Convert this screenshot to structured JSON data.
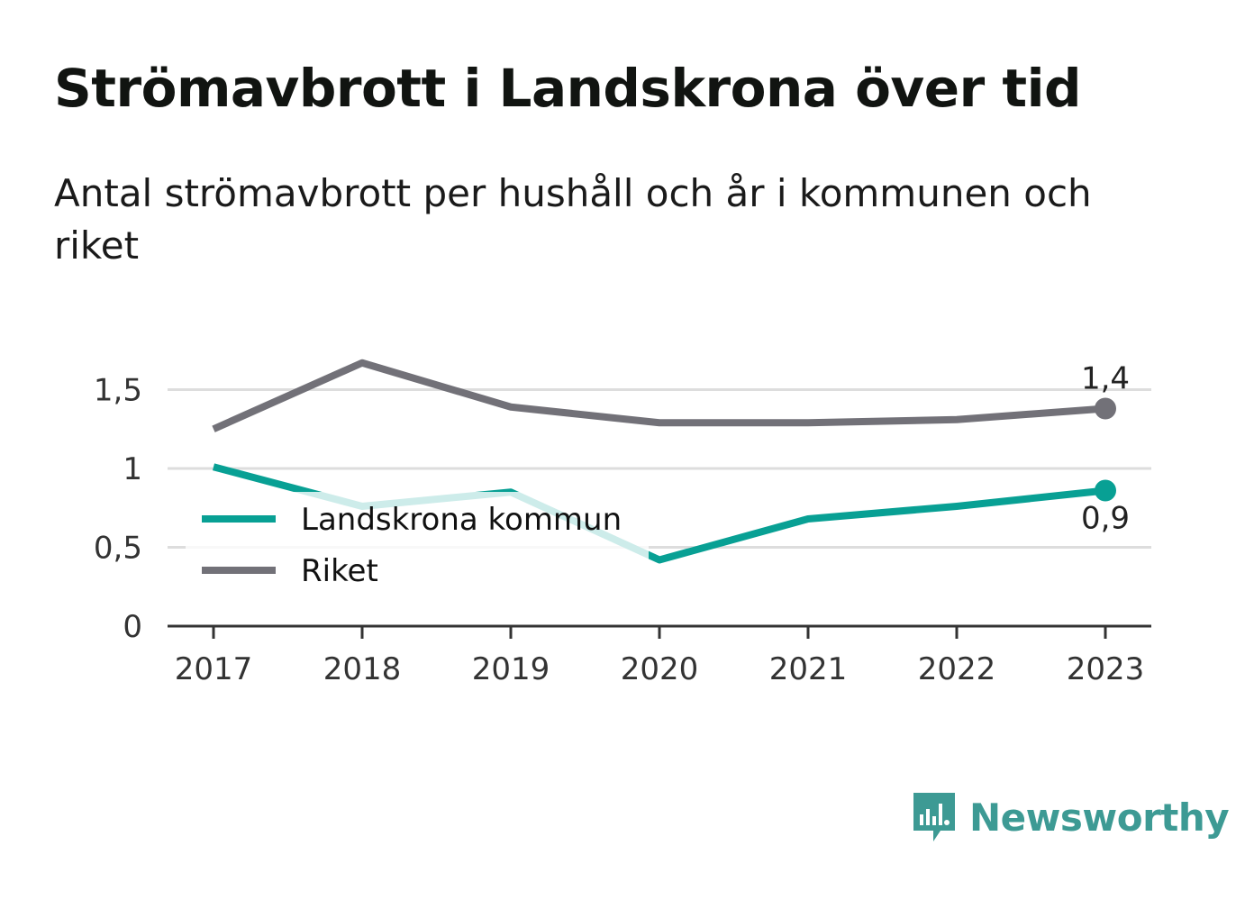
{
  "title": "Strömavbrott i Landskrona över tid",
  "subtitle": "Antal strömavbrott per hushåll och år i kommunen och riket",
  "brand": {
    "name": "Newsworthy",
    "icon": "newsworthy-logo-icon",
    "color": "#3d9a94"
  },
  "chart_data": {
    "type": "line",
    "title": "Strömavbrott i Landskrona över tid",
    "subtitle": "Antal strömavbrott per hushåll och år i kommunen och riket",
    "x": [
      "2017",
      "2018",
      "2019",
      "2020",
      "2021",
      "2022",
      "2023"
    ],
    "ylim": [
      0,
      1.75
    ],
    "yticks": [
      {
        "value": 0,
        "label": "0"
      },
      {
        "value": 0.5,
        "label": "0,5"
      },
      {
        "value": 1,
        "label": "1"
      },
      {
        "value": 1.5,
        "label": "1,5"
      }
    ],
    "grid": true,
    "legend": "inside, lower-left",
    "series": [
      {
        "name": "Landskrona kommun",
        "color": "#08a094",
        "values": [
          1.01,
          0.76,
          0.85,
          0.42,
          0.68,
          0.76,
          0.86
        ],
        "end_label": "0,9",
        "end_label_position": "below"
      },
      {
        "name": "Riket",
        "color": "#727178",
        "values": [
          1.25,
          1.67,
          1.39,
          1.29,
          1.29,
          1.31,
          1.38
        ],
        "end_label": "1,4",
        "end_label_position": "above"
      }
    ]
  }
}
